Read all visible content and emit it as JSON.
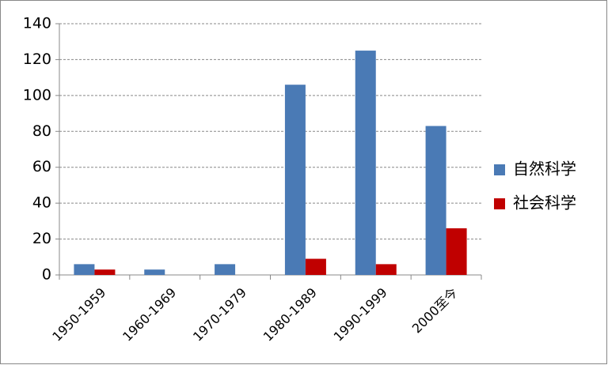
{
  "chart_data": {
    "type": "bar",
    "categories": [
      "1950-1959",
      "1960-1969",
      "1970-1979",
      "1980-1989",
      "1990-1999",
      "2000至今"
    ],
    "series": [
      {
        "name": "自然科学",
        "color": "#4a7ab5",
        "values": [
          6,
          3,
          6,
          106,
          125,
          83
        ]
      },
      {
        "name": "社会科学",
        "color": "#c00000",
        "values": [
          3,
          0,
          0,
          9,
          6,
          26
        ]
      }
    ],
    "ylim": [
      0,
      140
    ],
    "yticks": [
      0,
      20,
      40,
      60,
      80,
      100,
      120,
      140
    ],
    "grid": true,
    "legend": "right"
  }
}
